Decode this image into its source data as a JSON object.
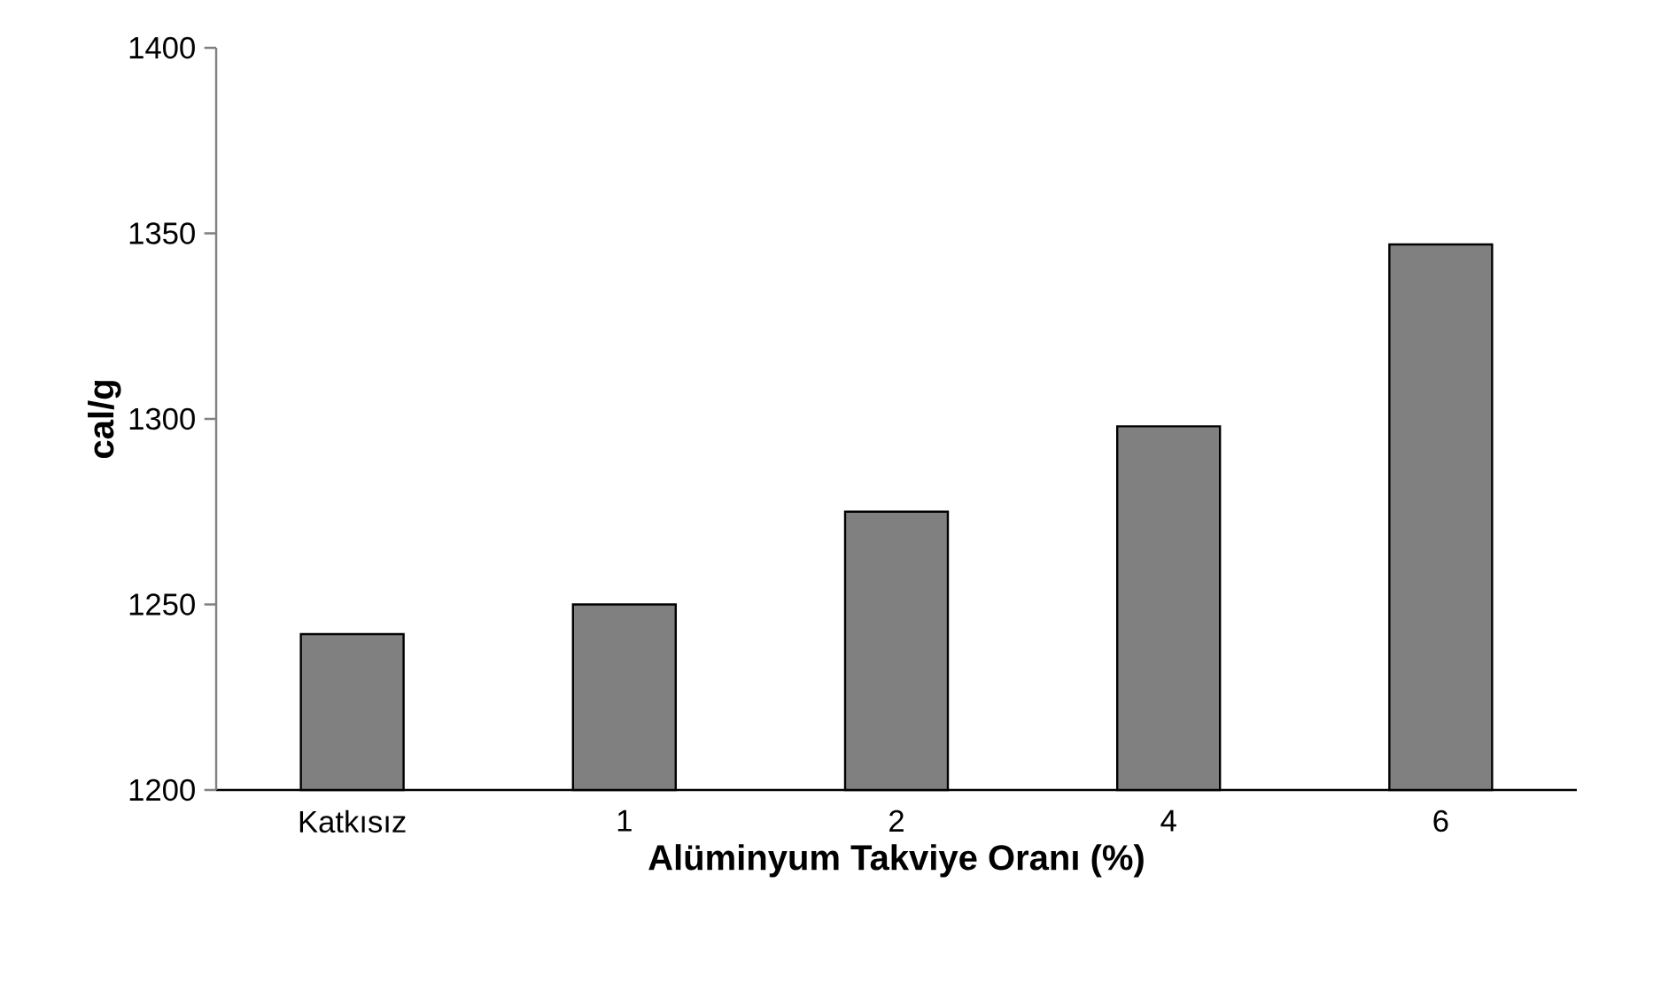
{
  "chart_data": {
    "type": "bar",
    "xlabel": "Alüminyum Takviye Oranı (%)",
    "ylabel": "cal/g",
    "categories": [
      "Katkısız",
      "1",
      "2",
      "4",
      "6"
    ],
    "values": [
      1242,
      1250,
      1275,
      1298,
      1347
    ],
    "color": "#808080",
    "ylim": [
      1200,
      1400
    ],
    "yticks": [
      1200,
      1250,
      1300,
      1350,
      1400
    ],
    "grid": false
  }
}
